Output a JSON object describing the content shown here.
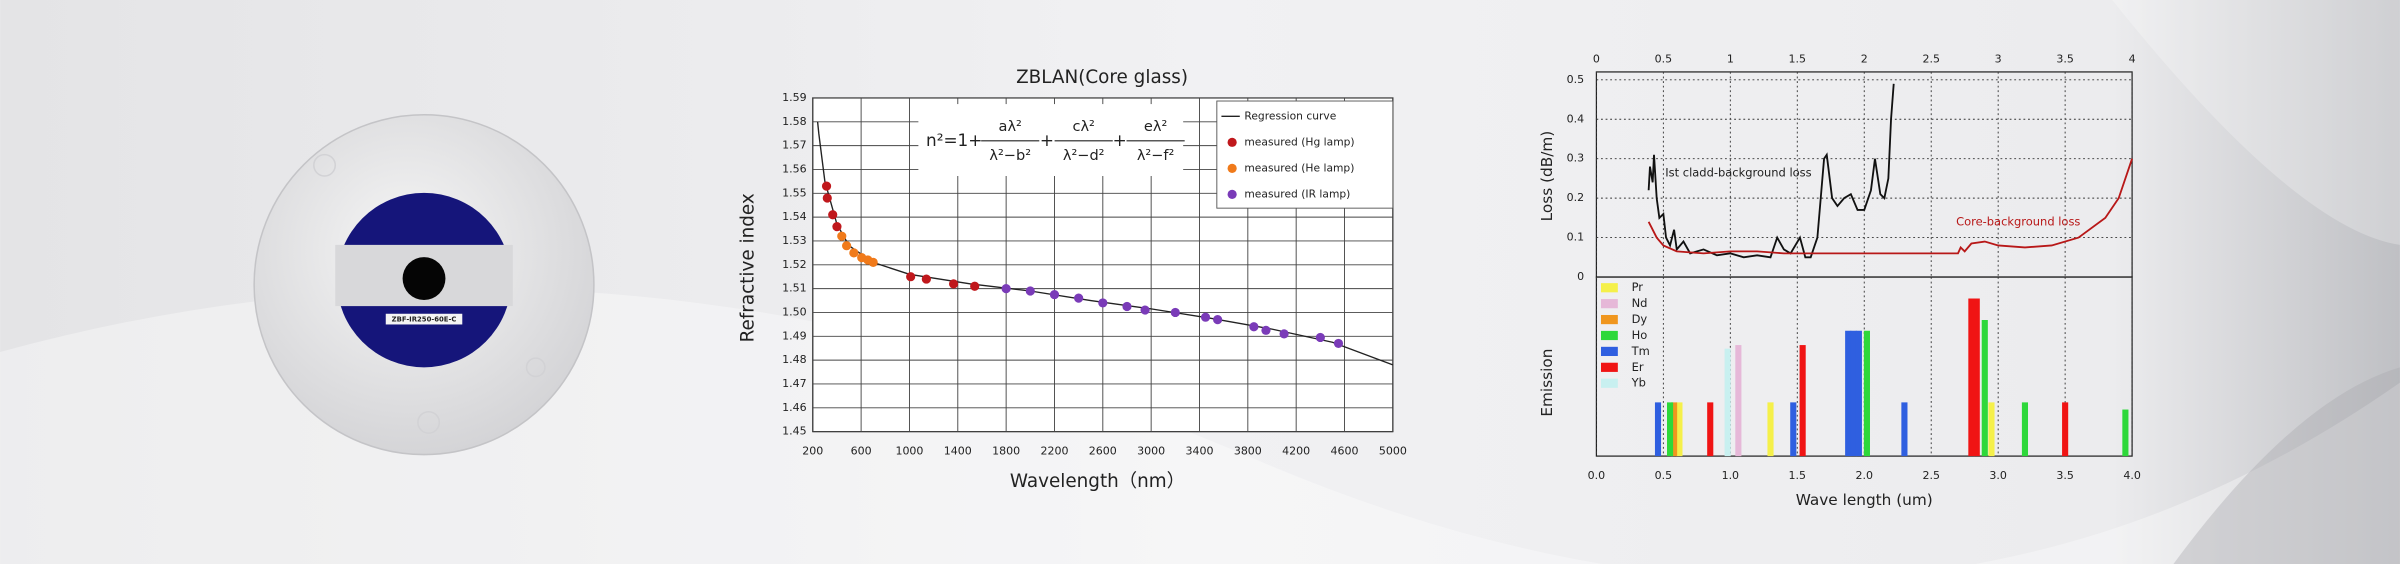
{
  "product": {
    "label": "ZBF-IR250-60E-C"
  },
  "chart_data": [
    {
      "type": "scatter",
      "title": "ZBLAN(Core glass)",
      "x_label": "Wavelength（nm）",
      "y_label": "Refractive index",
      "xlim": [
        200,
        5000
      ],
      "xticks": [
        200,
        600,
        1000,
        1400,
        1800,
        2200,
        2600,
        3000,
        3400,
        3800,
        4200,
        4600,
        5000
      ],
      "ylim": [
        1.45,
        1.59
      ],
      "yticks": [
        1.45,
        1.46,
        1.47,
        1.48,
        1.49,
        {
          "value": 1.5,
          "label": "1.50"
        },
        1.51,
        1.52,
        1.53,
        1.54,
        1.55,
        1.56,
        1.57,
        1.58,
        1.59
      ],
      "grid": [
        "x",
        "y"
      ],
      "grid_style": "solid",
      "xaxis": "bottom",
      "legend": "upper right",
      "formula": {
        "lhs": "n²=1+",
        "op": "+",
        "terms": [
          {
            "num": "aλ²",
            "den": "λ²−b²"
          },
          {
            "num": "cλ²",
            "den": "λ²−d²"
          },
          {
            "num": "eλ²",
            "den": "λ²−f²"
          }
        ]
      },
      "series": [
        {
          "name": "Regression curve",
          "color": "#222222",
          "style": "line",
          "x": [
            240,
            250,
            300,
            400,
            500,
            700,
            1000,
            1500,
            2000,
            2500,
            3000,
            3500,
            4000,
            4500,
            5000
          ],
          "values": [
            1.58,
            1.575,
            1.555,
            1.537,
            1.528,
            1.521,
            1.516,
            1.512,
            1.509,
            1.505,
            1.5015,
            1.4975,
            1.493,
            1.4875,
            1.478
          ]
        },
        {
          "name": "measured (Hg lamp)",
          "color": "#c0181c",
          "style": "marker",
          "x": [
            314,
            320,
            365,
            400,
            1010,
            1140,
            1365,
            1540
          ],
          "values": [
            1.553,
            1.548,
            1.541,
            1.536,
            1.515,
            1.514,
            1.512,
            1.511
          ]
        },
        {
          "name": "measured (He lamp)",
          "color": "#f07a1a",
          "style": "marker",
          "x": [
            440,
            480,
            540,
            605,
            656,
            700
          ],
          "values": [
            1.532,
            1.528,
            1.525,
            1.523,
            1.522,
            1.521
          ]
        },
        {
          "name": "measured (IR lamp)",
          "color": "#7a3bb8",
          "style": "marker",
          "x": [
            1800,
            2000,
            2200,
            2400,
            2600,
            2800,
            2950,
            3200,
            3450,
            3550,
            3850,
            3950,
            4100,
            4400,
            4550
          ],
          "values": [
            1.51,
            1.509,
            1.5075,
            1.506,
            1.504,
            1.5025,
            1.501,
            1.5,
            1.498,
            1.497,
            1.494,
            1.4925,
            1.491,
            1.4895,
            1.487
          ]
        }
      ]
    },
    {
      "type": "line",
      "y_label": "Loss (dB/m)",
      "xlim": [
        0,
        4
      ],
      "xticks": [
        0,
        0.5,
        1,
        1.5,
        2,
        2.5,
        3,
        3.5,
        4
      ],
      "ylim": [
        0,
        0.52
      ],
      "yticks": [
        0,
        0.1,
        0.2,
        0.3,
        0.4,
        0.5
      ],
      "grid": [
        "x",
        "y"
      ],
      "grid_style": "dotted",
      "xaxis": "top",
      "annotations": [
        "Ist cladd-background loss",
        "Core-background loss"
      ],
      "series": [
        {
          "color": "#111111",
          "x": [
            0.39,
            0.4,
            0.42,
            0.43,
            0.45,
            0.47,
            0.5,
            0.52,
            0.55,
            0.58,
            0.6,
            0.65,
            0.7,
            0.8,
            0.9,
            1.0,
            1.1,
            1.2,
            1.3,
            1.35,
            1.4,
            1.45,
            1.52,
            1.56,
            1.6,
            1.65,
            1.7,
            1.72,
            1.76,
            1.8,
            1.85,
            1.9,
            1.95,
            2.0,
            2.05,
            2.08,
            2.12,
            2.15,
            2.18,
            2.2,
            2.22
          ],
          "values": [
            0.22,
            0.28,
            0.24,
            0.31,
            0.2,
            0.15,
            0.16,
            0.1,
            0.08,
            0.12,
            0.07,
            0.09,
            0.06,
            0.07,
            0.055,
            0.06,
            0.05,
            0.055,
            0.05,
            0.1,
            0.07,
            0.06,
            0.1,
            0.05,
            0.05,
            0.1,
            0.3,
            0.31,
            0.2,
            0.18,
            0.2,
            0.21,
            0.17,
            0.17,
            0.22,
            0.3,
            0.21,
            0.2,
            0.25,
            0.4,
            0.49
          ]
        },
        {
          "color": "#b81818",
          "x": [
            0.39,
            0.45,
            0.5,
            0.6,
            0.8,
            1.0,
            1.2,
            1.4,
            1.6,
            2.0,
            2.4,
            2.7,
            2.72,
            2.75,
            2.8,
            2.9,
            3.0,
            3.2,
            3.4,
            3.6,
            3.8,
            3.9,
            4.0
          ],
          "values": [
            0.14,
            0.1,
            0.08,
            0.065,
            0.06,
            0.065,
            0.065,
            0.06,
            0.06,
            0.06,
            0.06,
            0.06,
            0.075,
            0.065,
            0.085,
            0.09,
            0.08,
            0.075,
            0.08,
            0.1,
            0.15,
            0.2,
            0.3
          ]
        }
      ]
    },
    {
      "type": "bar",
      "x_label": "Wave length (um)",
      "y_label": "Emission",
      "xlim": [
        0,
        4
      ],
      "xticks": [
        {
          "value": 0,
          "label": "0.0"
        },
        0.5,
        {
          "value": 1,
          "label": "1.0"
        },
        1.5,
        {
          "value": 2,
          "label": "2.0"
        },
        2.5,
        {
          "value": 3,
          "label": "3.0"
        },
        3.5,
        {
          "value": 4,
          "label": "4.0"
        }
      ],
      "ylim": [
        0,
        1
      ],
      "grid": [
        "x"
      ],
      "grid_style": "dotted",
      "xaxis": "bottom",
      "legend": "upper left",
      "series": [
        {
          "name": "Pr",
          "color": "#f5f04a",
          "x": [
            0.62,
            1.3,
            2.95
          ],
          "values": [
            0.3,
            0.3,
            0.3
          ]
        },
        {
          "name": "Nd",
          "color": "#e6b8d8",
          "x": [
            1.06
          ],
          "values": [
            0.62
          ]
        },
        {
          "name": "Dy",
          "color": "#f0961e",
          "x": [
            0.58
          ],
          "values": [
            0.3
          ]
        },
        {
          "name": "Ho",
          "color": "#2ed83a",
          "x": [
            0.55,
            2.02,
            2.9,
            3.2,
            3.95
          ],
          "values": [
            0.3,
            0.7,
            0.76,
            0.3,
            0.26
          ]
        },
        {
          "name": "Tm",
          "color": "#2f5fe0",
          "x": [
            0.46,
            1.47,
            1.88,
            1.92,
            1.96,
            2.3
          ],
          "values": [
            0.3,
            0.3,
            0.7,
            0.7,
            0.7,
            0.3
          ]
        },
        {
          "name": "Er",
          "color": "#f01414",
          "x": [
            0.85,
            1.54,
            2.8,
            2.84,
            3.5
          ],
          "values": [
            0.3,
            0.62,
            0.88,
            0.88,
            0.3
          ]
        },
        {
          "name": "Yb",
          "color": "#c8f0f0",
          "x": [
            0.98
          ],
          "values": [
            0.6
          ]
        }
      ]
    }
  ]
}
